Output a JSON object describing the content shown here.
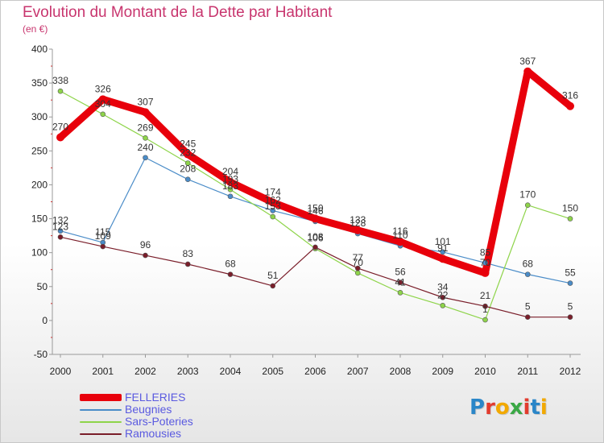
{
  "chart_data": {
    "type": "line",
    "title": "Evolution du Montant de la Dette par Habitant",
    "subtitle": "(en €)",
    "categories": [
      "2000",
      "2001",
      "2002",
      "2003",
      "2004",
      "2005",
      "2006",
      "2007",
      "2008",
      "2009",
      "2010",
      "2011",
      "2012"
    ],
    "ylim": [
      -50,
      400
    ],
    "yticks": [
      -50,
      0,
      50,
      100,
      150,
      200,
      250,
      300,
      350,
      400
    ],
    "grid": false,
    "legend_position": "bottom-left",
    "series": [
      {
        "name": "FELLERIES",
        "color": "#e8000b",
        "values": [
          270,
          326,
          307,
          245,
          204,
          174,
          150,
          133,
          116,
          91,
          70,
          367,
          316
        ],
        "labels": [
          "270",
          "326",
          "307",
          "245",
          "204",
          "174",
          "150",
          "133",
          "116",
          "91",
          "70",
          "367",
          "316"
        ]
      },
      {
        "name": "Beugnies",
        "color": "#4a8cc8",
        "values": [
          132,
          115,
          240,
          208,
          183,
          162,
          146,
          128,
          110,
          101,
          85,
          68,
          55
        ],
        "labels": [
          "132",
          "115",
          "240",
          "208",
          "183",
          "162",
          "146",
          "128",
          "110",
          "101",
          "85",
          "68",
          "55"
        ]
      },
      {
        "name": "Sars-Poteries",
        "color": "#8ed44a",
        "values": [
          338,
          304,
          269,
          232,
          193,
          153,
          106,
          70,
          41,
          22,
          1,
          170,
          150
        ],
        "labels": [
          "338",
          "304",
          "269",
          "232",
          "193",
          "153",
          "106",
          "70",
          "41",
          "22",
          "1",
          "170",
          "150"
        ]
      },
      {
        "name": "Ramousies",
        "color": "#7a1e2a",
        "values": [
          123,
          109,
          96,
          83,
          68,
          51,
          108,
          77,
          56,
          34,
          21,
          5,
          5
        ],
        "labels": [
          "123",
          "109",
          "96",
          "83",
          "68",
          "51",
          "108",
          "77",
          "56",
          "34",
          "21",
          "5",
          "5"
        ]
      }
    ]
  },
  "logo": {
    "text": "Proxiti",
    "letters": [
      {
        "ch": "P",
        "color": "#2a86c8"
      },
      {
        "ch": "r",
        "color": "#e23b2e"
      },
      {
        "ch": "o",
        "color": "#f2a900"
      },
      {
        "ch": "x",
        "color": "#3aa845"
      },
      {
        "ch": "i",
        "color": "#e23b2e"
      },
      {
        "ch": "t",
        "color": "#2a86c8"
      },
      {
        "ch": "i",
        "color": "#f2a900"
      }
    ]
  }
}
